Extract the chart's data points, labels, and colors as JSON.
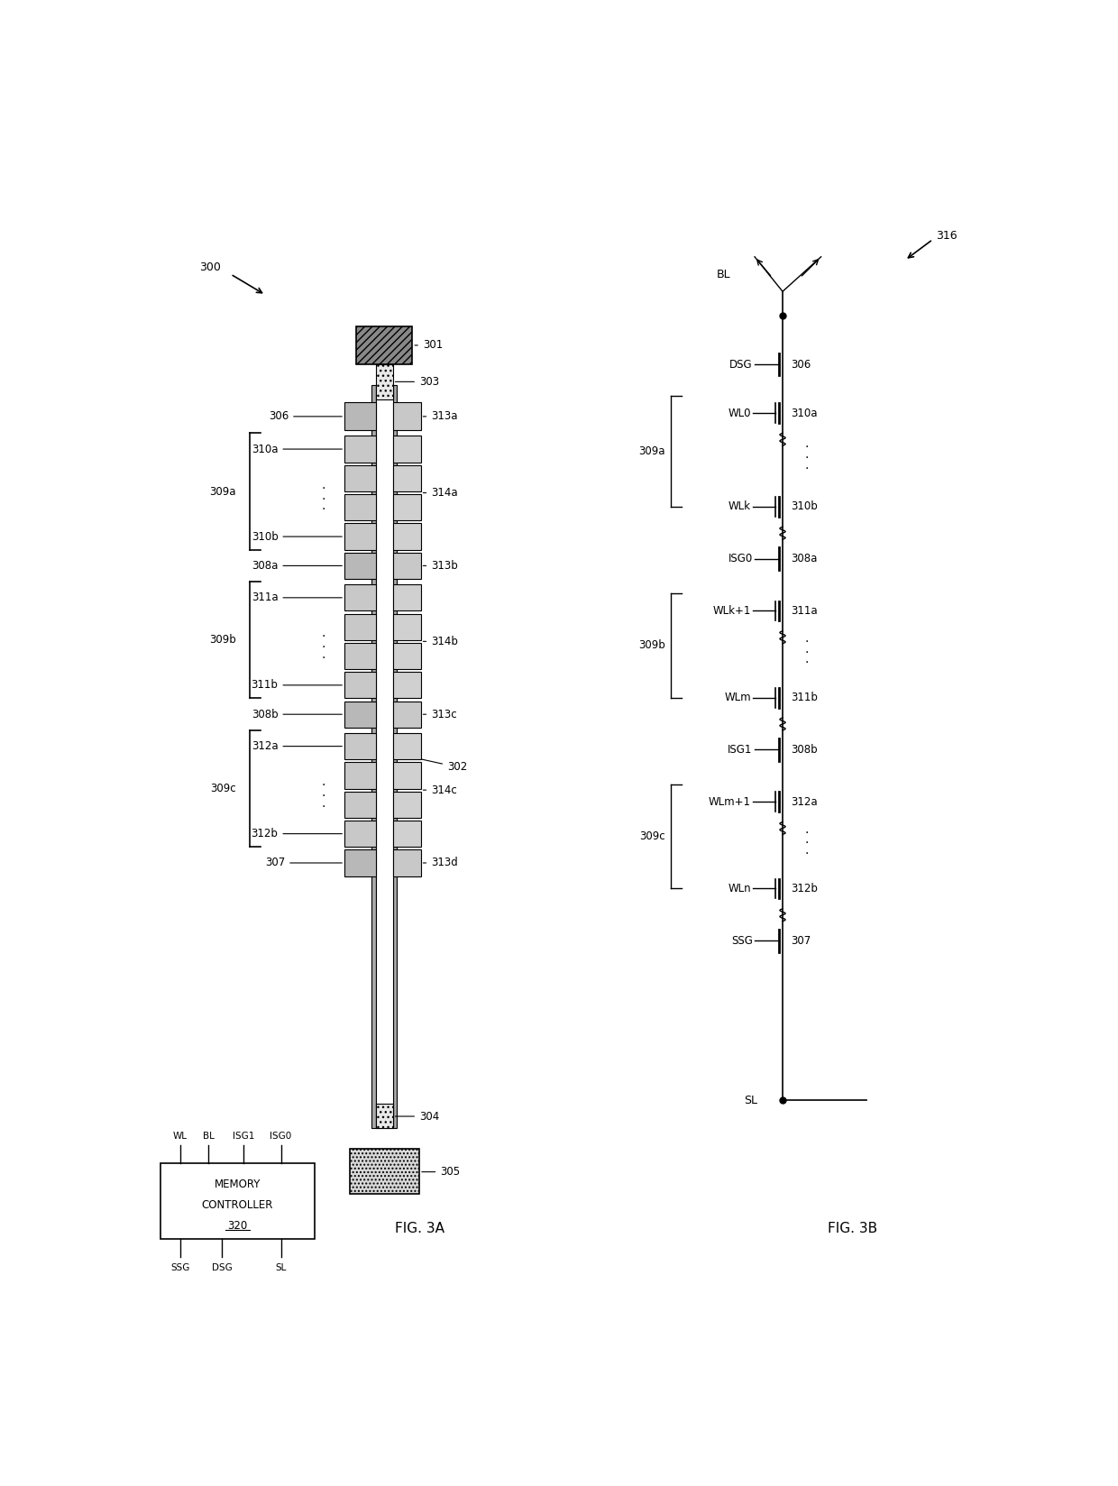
{
  "bg_color": "#ffffff",
  "line_color": "#000000",
  "fig_width": 12.4,
  "fig_height": 16.48,
  "dpi": 100,
  "fig3a_label": "FIG. 3A",
  "fig3b_label": "FIG. 3B",
  "ref_300": "300",
  "ref_316": "316"
}
